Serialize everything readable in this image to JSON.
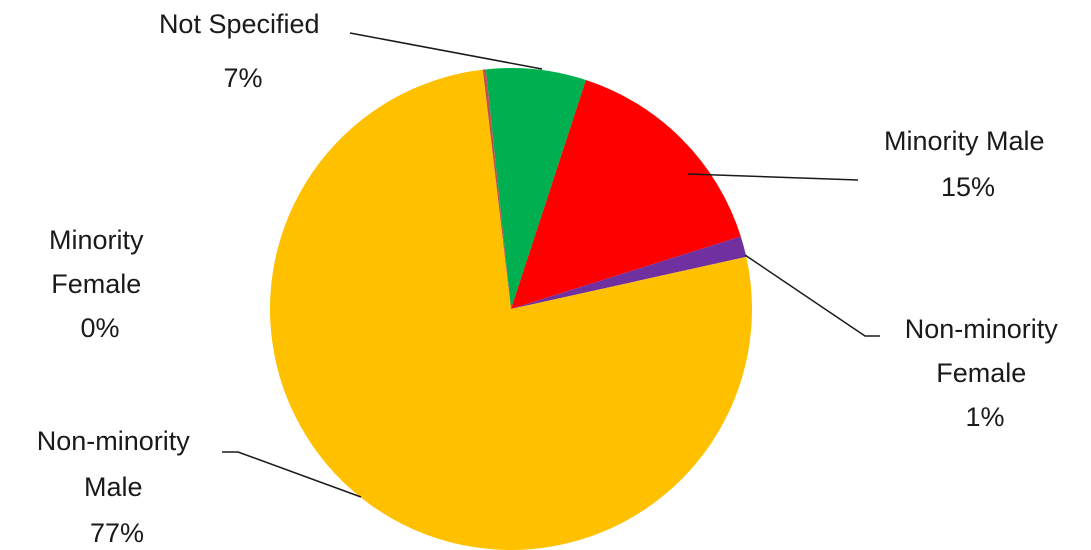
{
  "chart_data": {
    "type": "pie",
    "title": "",
    "slices": [
      {
        "label_lines": [
          "Not Specified"
        ],
        "pct_text": "7%",
        "value": 6.7,
        "color": "#00B050"
      },
      {
        "label_lines": [
          "Minority Male"
        ],
        "pct_text": "15%",
        "value": 15.1,
        "color": "#FF0000"
      },
      {
        "label_lines": [
          "Non-minority",
          "Female"
        ],
        "pct_text": "1%",
        "value": 1.4,
        "color": "#7030A0"
      },
      {
        "label_lines": [
          "Non-minority",
          "Male"
        ],
        "pct_text": "77%",
        "value": 76.6,
        "color": "#FFC000"
      },
      {
        "label_lines": [
          "Minority",
          "Female"
        ],
        "pct_text": "0%",
        "value": 0.2,
        "color": "#C0504D"
      }
    ],
    "legend": "none",
    "data_labels": "outside with leader lines"
  }
}
